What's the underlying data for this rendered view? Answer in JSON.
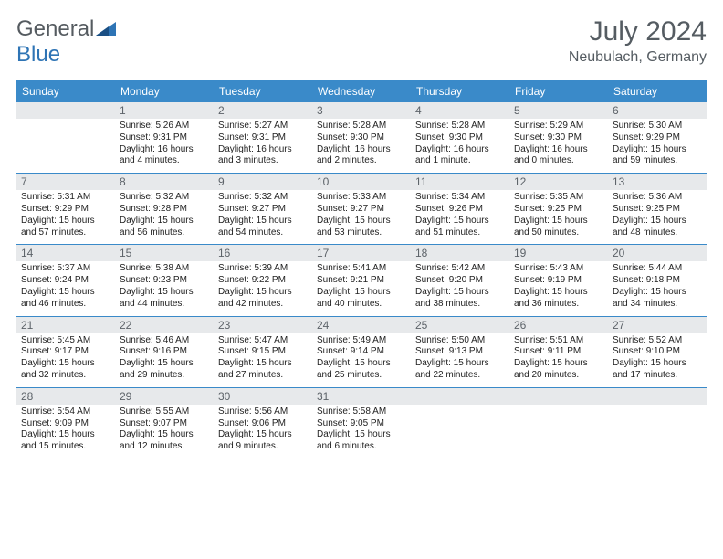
{
  "logo": {
    "part1": "General",
    "part2": "Blue"
  },
  "title": "July 2024",
  "location": "Neubulach, Germany",
  "colors": {
    "header_bg": "#3a8ac9",
    "header_text": "#ffffff",
    "daynum_bg": "#e7e9eb",
    "daynum_text": "#5d6369",
    "border": "#3a8ac9",
    "logo_gray": "#555b60",
    "logo_blue": "#2e74b5"
  },
  "weekdays": [
    "Sunday",
    "Monday",
    "Tuesday",
    "Wednesday",
    "Thursday",
    "Friday",
    "Saturday"
  ],
  "weeks": [
    [
      {
        "day": "",
        "sunrise": "",
        "sunset": "",
        "daylight1": "",
        "daylight2": ""
      },
      {
        "day": "1",
        "sunrise": "Sunrise: 5:26 AM",
        "sunset": "Sunset: 9:31 PM",
        "daylight1": "Daylight: 16 hours",
        "daylight2": "and 4 minutes."
      },
      {
        "day": "2",
        "sunrise": "Sunrise: 5:27 AM",
        "sunset": "Sunset: 9:31 PM",
        "daylight1": "Daylight: 16 hours",
        "daylight2": "and 3 minutes."
      },
      {
        "day": "3",
        "sunrise": "Sunrise: 5:28 AM",
        "sunset": "Sunset: 9:30 PM",
        "daylight1": "Daylight: 16 hours",
        "daylight2": "and 2 minutes."
      },
      {
        "day": "4",
        "sunrise": "Sunrise: 5:28 AM",
        "sunset": "Sunset: 9:30 PM",
        "daylight1": "Daylight: 16 hours",
        "daylight2": "and 1 minute."
      },
      {
        "day": "5",
        "sunrise": "Sunrise: 5:29 AM",
        "sunset": "Sunset: 9:30 PM",
        "daylight1": "Daylight: 16 hours",
        "daylight2": "and 0 minutes."
      },
      {
        "day": "6",
        "sunrise": "Sunrise: 5:30 AM",
        "sunset": "Sunset: 9:29 PM",
        "daylight1": "Daylight: 15 hours",
        "daylight2": "and 59 minutes."
      }
    ],
    [
      {
        "day": "7",
        "sunrise": "Sunrise: 5:31 AM",
        "sunset": "Sunset: 9:29 PM",
        "daylight1": "Daylight: 15 hours",
        "daylight2": "and 57 minutes."
      },
      {
        "day": "8",
        "sunrise": "Sunrise: 5:32 AM",
        "sunset": "Sunset: 9:28 PM",
        "daylight1": "Daylight: 15 hours",
        "daylight2": "and 56 minutes."
      },
      {
        "day": "9",
        "sunrise": "Sunrise: 5:32 AM",
        "sunset": "Sunset: 9:27 PM",
        "daylight1": "Daylight: 15 hours",
        "daylight2": "and 54 minutes."
      },
      {
        "day": "10",
        "sunrise": "Sunrise: 5:33 AM",
        "sunset": "Sunset: 9:27 PM",
        "daylight1": "Daylight: 15 hours",
        "daylight2": "and 53 minutes."
      },
      {
        "day": "11",
        "sunrise": "Sunrise: 5:34 AM",
        "sunset": "Sunset: 9:26 PM",
        "daylight1": "Daylight: 15 hours",
        "daylight2": "and 51 minutes."
      },
      {
        "day": "12",
        "sunrise": "Sunrise: 5:35 AM",
        "sunset": "Sunset: 9:25 PM",
        "daylight1": "Daylight: 15 hours",
        "daylight2": "and 50 minutes."
      },
      {
        "day": "13",
        "sunrise": "Sunrise: 5:36 AM",
        "sunset": "Sunset: 9:25 PM",
        "daylight1": "Daylight: 15 hours",
        "daylight2": "and 48 minutes."
      }
    ],
    [
      {
        "day": "14",
        "sunrise": "Sunrise: 5:37 AM",
        "sunset": "Sunset: 9:24 PM",
        "daylight1": "Daylight: 15 hours",
        "daylight2": "and 46 minutes."
      },
      {
        "day": "15",
        "sunrise": "Sunrise: 5:38 AM",
        "sunset": "Sunset: 9:23 PM",
        "daylight1": "Daylight: 15 hours",
        "daylight2": "and 44 minutes."
      },
      {
        "day": "16",
        "sunrise": "Sunrise: 5:39 AM",
        "sunset": "Sunset: 9:22 PM",
        "daylight1": "Daylight: 15 hours",
        "daylight2": "and 42 minutes."
      },
      {
        "day": "17",
        "sunrise": "Sunrise: 5:41 AM",
        "sunset": "Sunset: 9:21 PM",
        "daylight1": "Daylight: 15 hours",
        "daylight2": "and 40 minutes."
      },
      {
        "day": "18",
        "sunrise": "Sunrise: 5:42 AM",
        "sunset": "Sunset: 9:20 PM",
        "daylight1": "Daylight: 15 hours",
        "daylight2": "and 38 minutes."
      },
      {
        "day": "19",
        "sunrise": "Sunrise: 5:43 AM",
        "sunset": "Sunset: 9:19 PM",
        "daylight1": "Daylight: 15 hours",
        "daylight2": "and 36 minutes."
      },
      {
        "day": "20",
        "sunrise": "Sunrise: 5:44 AM",
        "sunset": "Sunset: 9:18 PM",
        "daylight1": "Daylight: 15 hours",
        "daylight2": "and 34 minutes."
      }
    ],
    [
      {
        "day": "21",
        "sunrise": "Sunrise: 5:45 AM",
        "sunset": "Sunset: 9:17 PM",
        "daylight1": "Daylight: 15 hours",
        "daylight2": "and 32 minutes."
      },
      {
        "day": "22",
        "sunrise": "Sunrise: 5:46 AM",
        "sunset": "Sunset: 9:16 PM",
        "daylight1": "Daylight: 15 hours",
        "daylight2": "and 29 minutes."
      },
      {
        "day": "23",
        "sunrise": "Sunrise: 5:47 AM",
        "sunset": "Sunset: 9:15 PM",
        "daylight1": "Daylight: 15 hours",
        "daylight2": "and 27 minutes."
      },
      {
        "day": "24",
        "sunrise": "Sunrise: 5:49 AM",
        "sunset": "Sunset: 9:14 PM",
        "daylight1": "Daylight: 15 hours",
        "daylight2": "and 25 minutes."
      },
      {
        "day": "25",
        "sunrise": "Sunrise: 5:50 AM",
        "sunset": "Sunset: 9:13 PM",
        "daylight1": "Daylight: 15 hours",
        "daylight2": "and 22 minutes."
      },
      {
        "day": "26",
        "sunrise": "Sunrise: 5:51 AM",
        "sunset": "Sunset: 9:11 PM",
        "daylight1": "Daylight: 15 hours",
        "daylight2": "and 20 minutes."
      },
      {
        "day": "27",
        "sunrise": "Sunrise: 5:52 AM",
        "sunset": "Sunset: 9:10 PM",
        "daylight1": "Daylight: 15 hours",
        "daylight2": "and 17 minutes."
      }
    ],
    [
      {
        "day": "28",
        "sunrise": "Sunrise: 5:54 AM",
        "sunset": "Sunset: 9:09 PM",
        "daylight1": "Daylight: 15 hours",
        "daylight2": "and 15 minutes."
      },
      {
        "day": "29",
        "sunrise": "Sunrise: 5:55 AM",
        "sunset": "Sunset: 9:07 PM",
        "daylight1": "Daylight: 15 hours",
        "daylight2": "and 12 minutes."
      },
      {
        "day": "30",
        "sunrise": "Sunrise: 5:56 AM",
        "sunset": "Sunset: 9:06 PM",
        "daylight1": "Daylight: 15 hours",
        "daylight2": "and 9 minutes."
      },
      {
        "day": "31",
        "sunrise": "Sunrise: 5:58 AM",
        "sunset": "Sunset: 9:05 PM",
        "daylight1": "Daylight: 15 hours",
        "daylight2": "and 6 minutes."
      },
      {
        "day": "",
        "sunrise": "",
        "sunset": "",
        "daylight1": "",
        "daylight2": ""
      },
      {
        "day": "",
        "sunrise": "",
        "sunset": "",
        "daylight1": "",
        "daylight2": ""
      },
      {
        "day": "",
        "sunrise": "",
        "sunset": "",
        "daylight1": "",
        "daylight2": ""
      }
    ]
  ]
}
